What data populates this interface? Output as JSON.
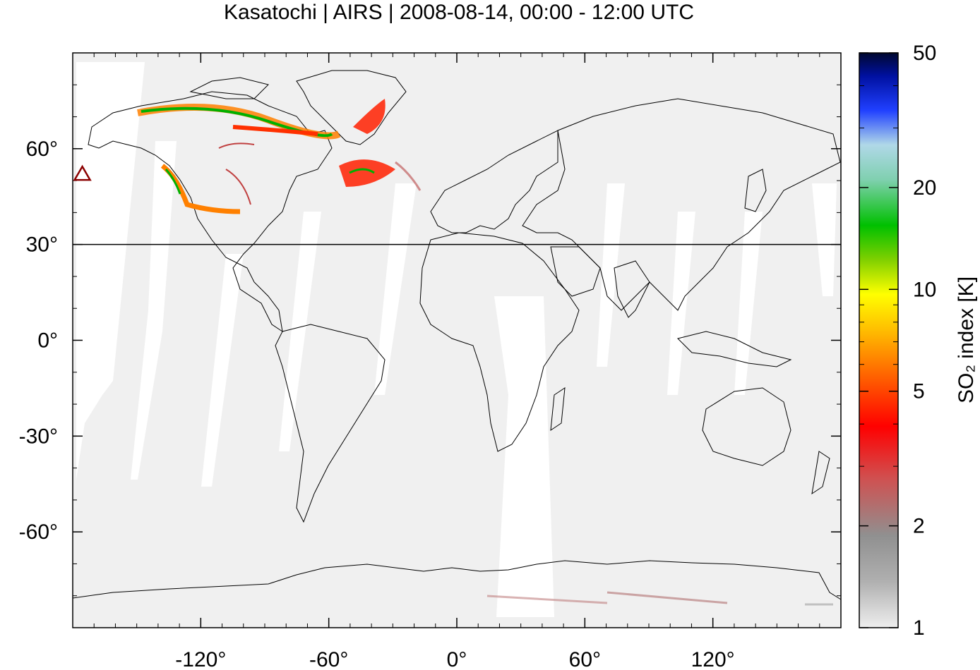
{
  "title": "Kasatochi | AIRS | 2008-08-14, 00:00 - 12:00 UTC",
  "map": {
    "lon_range": [
      -180,
      180
    ],
    "lat_range": [
      -90,
      90
    ],
    "x_ticks": [
      {
        "value": -120,
        "label": "-120°"
      },
      {
        "value": -60,
        "label": "-60°"
      },
      {
        "value": 0,
        "label": "0°"
      },
      {
        "value": 60,
        "label": "60°"
      },
      {
        "value": 120,
        "label": "120°"
      }
    ],
    "y_ticks": [
      {
        "value": 60,
        "label": "60°"
      },
      {
        "value": 30,
        "label": "30°"
      },
      {
        "value": 0,
        "label": "0°"
      },
      {
        "value": -30,
        "label": "-30°"
      },
      {
        "value": -60,
        "label": "-60°"
      }
    ],
    "reference_line_lat": 30,
    "background_color": "#f0f0f0",
    "coastline_color": "#000000",
    "volcano_marker": {
      "name_icon": "triangle-marker-icon",
      "lon": -175.5,
      "lat": 52.2,
      "color": "#8b0000"
    }
  },
  "colorbar": {
    "label": "SO₂ index [K]",
    "scale": "log",
    "range": [
      1,
      50
    ],
    "ticks": [
      {
        "value": 50,
        "label": "50"
      },
      {
        "value": 20,
        "label": "20"
      },
      {
        "value": 10,
        "label": "10"
      },
      {
        "value": 5,
        "label": "5"
      },
      {
        "value": 2,
        "label": "2"
      },
      {
        "value": 1,
        "label": "1"
      }
    ],
    "colors": [
      "#e6e6e6",
      "#a0a0a0",
      "#c04040",
      "#ff0000",
      "#ff6000",
      "#ffc000",
      "#ffff00",
      "#00c000",
      "#90d0d0",
      "#0000ff",
      "#000040"
    ]
  }
}
